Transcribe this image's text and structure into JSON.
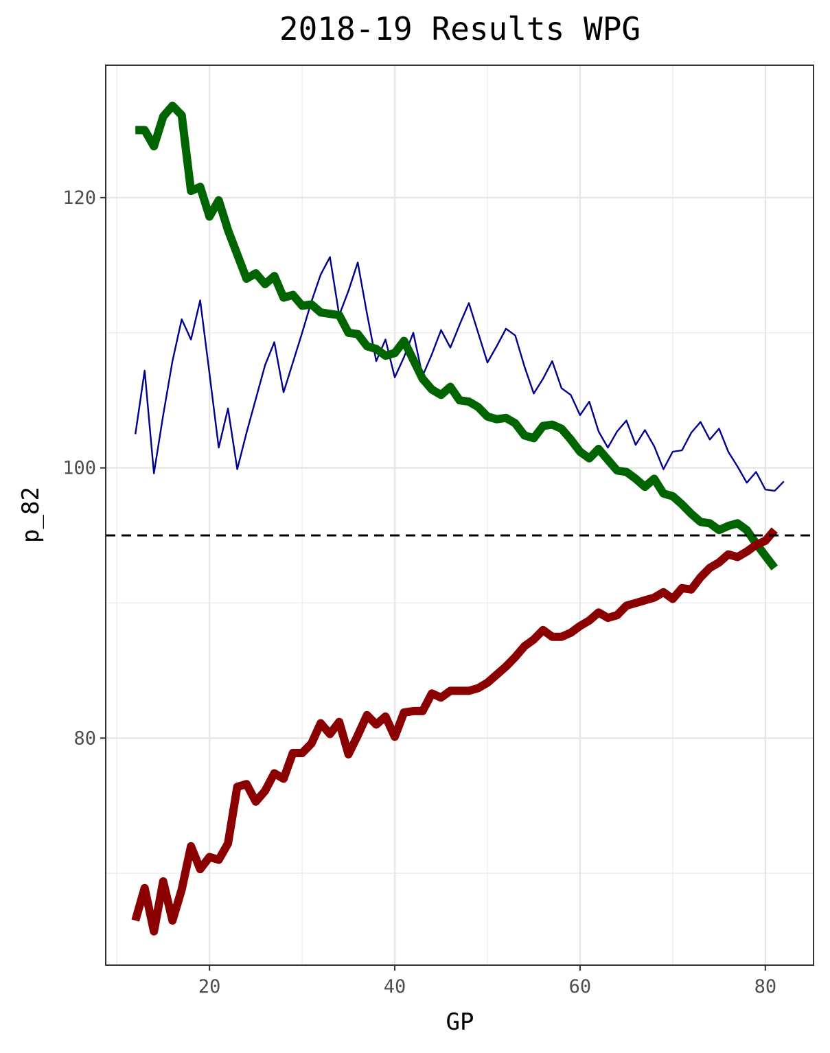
{
  "chart_data": {
    "type": "line",
    "title": "2018-19 Results WPG",
    "xlabel": "GP",
    "ylabel": "p_82",
    "xlim": [
      8.8,
      85.2
    ],
    "ylim": [
      63.2,
      129.8
    ],
    "x_ticks": [
      20,
      40,
      60,
      80
    ],
    "y_ticks": [
      80,
      100,
      120
    ],
    "grid": true,
    "legend": "none",
    "reference_line": {
      "y": 95,
      "style": "dashed",
      "color": "#000000"
    },
    "series": [
      {
        "color": "#00008B",
        "width": "thin",
        "points": [
          [
            12,
            102.5
          ],
          [
            13,
            107.2
          ],
          [
            14,
            99.6
          ],
          [
            15,
            103.9
          ],
          [
            16,
            107.9
          ],
          [
            17,
            111.0
          ],
          [
            18,
            109.5
          ],
          [
            19,
            112.4
          ],
          [
            20,
            107.0
          ],
          [
            21,
            101.5
          ],
          [
            22,
            104.4
          ],
          [
            23,
            99.9
          ],
          [
            24,
            102.6
          ],
          [
            25,
            105.1
          ],
          [
            26,
            107.6
          ],
          [
            27,
            109.3
          ],
          [
            28,
            105.6
          ],
          [
            29,
            107.8
          ],
          [
            30,
            110.0
          ],
          [
            31,
            112.3
          ],
          [
            32,
            114.3
          ],
          [
            33,
            115.6
          ],
          [
            34,
            111.3
          ],
          [
            35,
            113.1
          ],
          [
            36,
            115.2
          ],
          [
            37,
            111.4
          ],
          [
            38,
            107.9
          ],
          [
            39,
            109.5
          ],
          [
            40,
            106.7
          ],
          [
            41,
            108.2
          ],
          [
            42,
            110.0
          ],
          [
            43,
            106.8
          ],
          [
            44,
            108.4
          ],
          [
            45,
            110.2
          ],
          [
            46,
            108.9
          ],
          [
            47,
            110.6
          ],
          [
            48,
            112.2
          ],
          [
            49,
            110.0
          ],
          [
            50,
            107.8
          ],
          [
            51,
            109.0
          ],
          [
            52,
            110.3
          ],
          [
            53,
            109.8
          ],
          [
            54,
            107.5
          ],
          [
            55,
            105.5
          ],
          [
            56,
            106.6
          ],
          [
            57,
            107.9
          ],
          [
            58,
            105.9
          ],
          [
            59,
            105.4
          ],
          [
            60,
            103.9
          ],
          [
            61,
            104.9
          ],
          [
            62,
            102.7
          ],
          [
            63,
            101.5
          ],
          [
            64,
            102.7
          ],
          [
            65,
            103.5
          ],
          [
            66,
            101.7
          ],
          [
            67,
            102.8
          ],
          [
            68,
            101.6
          ],
          [
            69,
            99.9
          ],
          [
            70,
            101.2
          ],
          [
            71,
            101.3
          ],
          [
            72,
            102.6
          ],
          [
            73,
            103.4
          ],
          [
            74,
            102.1
          ],
          [
            75,
            102.9
          ],
          [
            76,
            101.2
          ],
          [
            77,
            100.1
          ],
          [
            78,
            98.9
          ],
          [
            79,
            99.7
          ],
          [
            80,
            98.4
          ],
          [
            81,
            98.3
          ],
          [
            82,
            99.0
          ]
        ]
      },
      {
        "color": "#006400",
        "width": "thick",
        "points": [
          [
            12,
            125.0
          ],
          [
            13,
            125.0
          ],
          [
            14,
            123.8
          ],
          [
            15,
            126.0
          ],
          [
            16,
            126.8
          ],
          [
            17,
            126.1
          ],
          [
            18,
            120.5
          ],
          [
            19,
            120.8
          ],
          [
            20,
            118.6
          ],
          [
            21,
            119.8
          ],
          [
            22,
            117.6
          ],
          [
            23,
            115.8
          ],
          [
            24,
            114.0
          ],
          [
            25,
            114.4
          ],
          [
            26,
            113.6
          ],
          [
            27,
            114.2
          ],
          [
            28,
            112.6
          ],
          [
            29,
            112.8
          ],
          [
            30,
            112.0
          ],
          [
            31,
            112.1
          ],
          [
            32,
            111.5
          ],
          [
            33,
            111.4
          ],
          [
            34,
            111.3
          ],
          [
            35,
            110.0
          ],
          [
            36,
            109.9
          ],
          [
            37,
            109.0
          ],
          [
            38,
            108.8
          ],
          [
            39,
            108.3
          ],
          [
            40,
            108.5
          ],
          [
            41,
            109.4
          ],
          [
            42,
            108.0
          ],
          [
            43,
            106.6
          ],
          [
            44,
            105.8
          ],
          [
            45,
            105.4
          ],
          [
            46,
            106.0
          ],
          [
            47,
            105.0
          ],
          [
            48,
            104.9
          ],
          [
            49,
            104.5
          ],
          [
            50,
            103.8
          ],
          [
            51,
            103.6
          ],
          [
            52,
            103.7
          ],
          [
            53,
            103.3
          ],
          [
            54,
            102.4
          ],
          [
            55,
            102.2
          ],
          [
            56,
            103.1
          ],
          [
            57,
            103.2
          ],
          [
            58,
            102.9
          ],
          [
            59,
            102.1
          ],
          [
            60,
            101.2
          ],
          [
            61,
            100.7
          ],
          [
            62,
            101.4
          ],
          [
            63,
            100.6
          ],
          [
            64,
            99.8
          ],
          [
            65,
            99.7
          ],
          [
            66,
            99.2
          ],
          [
            67,
            98.6
          ],
          [
            68,
            99.2
          ],
          [
            69,
            98.1
          ],
          [
            70,
            97.9
          ],
          [
            71,
            97.3
          ],
          [
            72,
            96.6
          ],
          [
            73,
            96.0
          ],
          [
            74,
            95.9
          ],
          [
            75,
            95.4
          ],
          [
            76,
            95.7
          ],
          [
            77,
            95.9
          ],
          [
            78,
            95.4
          ],
          [
            79,
            94.4
          ],
          [
            80,
            93.5
          ],
          [
            81,
            92.6
          ]
        ]
      },
      {
        "color": "#8B0000",
        "width": "thick",
        "points": [
          [
            12,
            66.5
          ],
          [
            13,
            68.9
          ],
          [
            14,
            65.7
          ],
          [
            15,
            69.4
          ],
          [
            16,
            66.5
          ],
          [
            17,
            68.8
          ],
          [
            18,
            72.0
          ],
          [
            19,
            70.3
          ],
          [
            20,
            71.2
          ],
          [
            21,
            71.0
          ],
          [
            22,
            72.2
          ],
          [
            23,
            76.4
          ],
          [
            24,
            76.6
          ],
          [
            25,
            75.3
          ],
          [
            26,
            76.1
          ],
          [
            27,
            77.4
          ],
          [
            28,
            77.0
          ],
          [
            29,
            78.9
          ],
          [
            30,
            78.9
          ],
          [
            31,
            79.6
          ],
          [
            32,
            81.1
          ],
          [
            33,
            80.3
          ],
          [
            34,
            81.2
          ],
          [
            35,
            78.8
          ],
          [
            36,
            80.2
          ],
          [
            37,
            81.7
          ],
          [
            38,
            81.0
          ],
          [
            39,
            81.6
          ],
          [
            40,
            80.1
          ],
          [
            41,
            81.9
          ],
          [
            42,
            82.0
          ],
          [
            43,
            82.0
          ],
          [
            44,
            83.3
          ],
          [
            45,
            83.0
          ],
          [
            46,
            83.5
          ],
          [
            47,
            83.5
          ],
          [
            48,
            83.5
          ],
          [
            49,
            83.7
          ],
          [
            50,
            84.1
          ],
          [
            51,
            84.7
          ],
          [
            52,
            85.3
          ],
          [
            53,
            86.0
          ],
          [
            54,
            86.8
          ],
          [
            55,
            87.3
          ],
          [
            56,
            88.0
          ],
          [
            57,
            87.5
          ],
          [
            58,
            87.5
          ],
          [
            59,
            87.8
          ],
          [
            60,
            88.3
          ],
          [
            61,
            88.7
          ],
          [
            62,
            89.3
          ],
          [
            63,
            88.9
          ],
          [
            64,
            89.1
          ],
          [
            65,
            89.8
          ],
          [
            66,
            90.0
          ],
          [
            67,
            90.2
          ],
          [
            68,
            90.4
          ],
          [
            69,
            90.8
          ],
          [
            70,
            90.3
          ],
          [
            71,
            91.1
          ],
          [
            72,
            91.0
          ],
          [
            73,
            91.9
          ],
          [
            74,
            92.6
          ],
          [
            75,
            93.0
          ],
          [
            76,
            93.6
          ],
          [
            77,
            93.4
          ],
          [
            78,
            93.8
          ],
          [
            79,
            94.3
          ],
          [
            80,
            94.6
          ],
          [
            81,
            95.4
          ]
        ]
      }
    ]
  }
}
